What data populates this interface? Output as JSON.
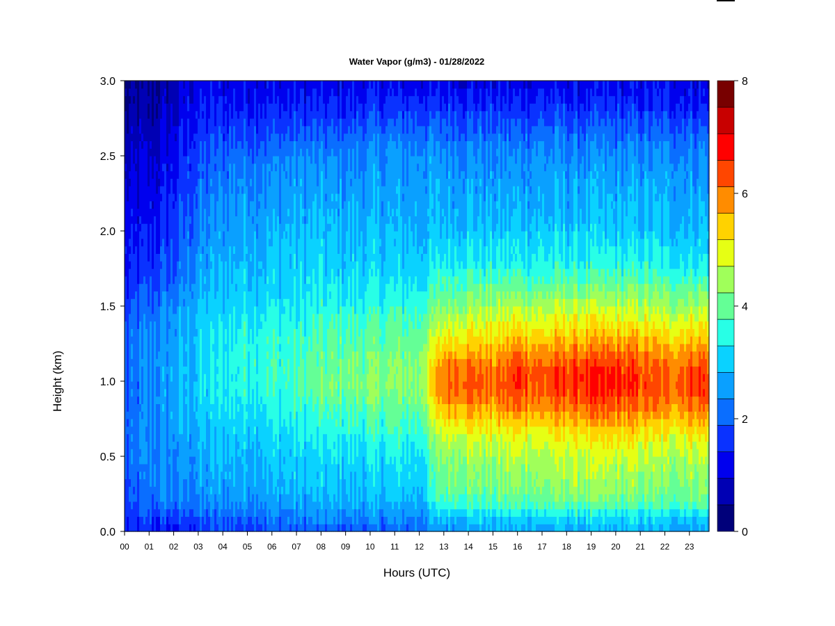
{
  "chart_data": {
    "type": "heatmap",
    "title": "Water Vapor (g/m3) - 01/28/2022",
    "xlabel": "Hours (UTC)",
    "ylabel": "Height (km)",
    "x_ticks": [
      "00",
      "01",
      "02",
      "03",
      "04",
      "05",
      "06",
      "07",
      "08",
      "09",
      "10",
      "11",
      "12",
      "13",
      "14",
      "15",
      "16",
      "17",
      "18",
      "19",
      "20",
      "21",
      "22",
      "23"
    ],
    "y_ticks": [
      "0.0",
      "0.5",
      "1.0",
      "1.5",
      "2.0",
      "2.5",
      "3.0"
    ],
    "xlim": [
      0,
      23.8
    ],
    "ylim": [
      0,
      3
    ],
    "colorbar": {
      "min": 0,
      "max": 8,
      "step": 0.5,
      "tick_labels": [
        "0",
        "2",
        "4",
        "6",
        "8"
      ],
      "colors": [
        "#00007a",
        "#0000b4",
        "#0000ee",
        "#0a32ff",
        "#0a6eff",
        "#0aa0ff",
        "#0ad2ff",
        "#28ffe6",
        "#64ff96",
        "#a0ff5a",
        "#e6ff14",
        "#ffd200",
        "#ff8c00",
        "#ff4600",
        "#ff0000",
        "#c80000",
        "#780000"
      ]
    },
    "profile_heights_km": [
      0.0,
      0.1,
      0.2,
      0.3,
      0.4,
      0.5,
      0.6,
      0.7,
      0.8,
      0.9,
      1.0,
      1.1,
      1.2,
      1.3,
      1.4,
      1.5,
      1.6,
      1.7,
      1.8,
      1.9,
      2.0,
      2.1,
      2.2,
      2.3,
      2.4,
      2.5,
      2.6,
      2.7,
      2.8,
      2.9,
      3.0
    ],
    "profile_hours": [
      0,
      1,
      2,
      3,
      4,
      5,
      6,
      7,
      8,
      9,
      10,
      11,
      12,
      13,
      14,
      15,
      16,
      17,
      18,
      19,
      20,
      21,
      22,
      23
    ],
    "values": [
      [
        1.4,
        1.5,
        1.8,
        1.8,
        1.9,
        2.0,
        2.0,
        2.0,
        2.0,
        2.0,
        2.0,
        2.0,
        2.0,
        2.0,
        1.9,
        1.7,
        1.5,
        1.4,
        1.3,
        1.3,
        1.2,
        1.2,
        1.1,
        1.0,
        0.9,
        0.8,
        0.7,
        0.6,
        0.5,
        0.4,
        0.3
      ],
      [
        1.5,
        1.8,
        2.2,
        2.3,
        2.4,
        2.5,
        2.5,
        2.5,
        2.5,
        2.5,
        2.5,
        2.5,
        2.5,
        2.5,
        2.4,
        2.2,
        2.0,
        1.8,
        1.6,
        1.5,
        1.4,
        1.3,
        1.2,
        1.1,
        1.0,
        0.9,
        0.8,
        0.7,
        0.6,
        0.5,
        0.4
      ],
      [
        1.4,
        1.8,
        2.4,
        2.4,
        2.5,
        2.5,
        2.6,
        2.7,
        2.8,
        2.8,
        2.8,
        2.8,
        2.8,
        2.7,
        2.6,
        2.5,
        2.3,
        2.1,
        2.0,
        1.9,
        1.8,
        1.7,
        1.6,
        1.5,
        1.4,
        1.3,
        1.2,
        1.1,
        1.0,
        0.9,
        0.8
      ],
      [
        1.6,
        2.0,
        2.4,
        2.6,
        2.7,
        2.8,
        2.9,
        3.0,
        3.1,
        3.2,
        3.2,
        3.2,
        3.2,
        3.2,
        3.1,
        3.0,
        2.8,
        2.7,
        2.6,
        2.5,
        2.4,
        2.3,
        2.2,
        2.1,
        2.0,
        1.9,
        1.8,
        1.6,
        1.5,
        1.3,
        1.2
      ],
      [
        1.8,
        2.2,
        2.6,
        2.8,
        2.9,
        3.0,
        3.1,
        3.2,
        3.4,
        3.5,
        3.5,
        3.5,
        3.5,
        3.5,
        3.4,
        3.3,
        3.1,
        3.0,
        2.9,
        2.8,
        2.7,
        2.6,
        2.5,
        2.4,
        2.3,
        2.1,
        1.9,
        1.7,
        1.5,
        1.3,
        1.2
      ],
      [
        1.9,
        2.3,
        2.7,
        2.9,
        3.0,
        3.1,
        3.2,
        3.4,
        3.5,
        3.7,
        3.8,
        3.8,
        3.8,
        3.7,
        3.6,
        3.4,
        3.3,
        3.2,
        3.1,
        3.0,
        2.9,
        2.8,
        2.7,
        2.6,
        2.5,
        2.3,
        2.1,
        1.9,
        1.6,
        1.4,
        1.2
      ],
      [
        1.9,
        2.4,
        2.8,
        2.9,
        3.0,
        3.1,
        3.3,
        3.4,
        3.6,
        3.8,
        3.9,
        3.9,
        3.9,
        3.8,
        3.6,
        3.5,
        3.3,
        3.2,
        3.1,
        3.0,
        2.9,
        2.8,
        2.7,
        2.6,
        2.5,
        2.3,
        2.1,
        1.8,
        1.6,
        1.4,
        1.2
      ],
      [
        2.0,
        2.4,
        2.8,
        3.0,
        3.1,
        3.2,
        3.4,
        3.5,
        3.7,
        3.9,
        4.0,
        4.0,
        3.9,
        3.8,
        3.6,
        3.5,
        3.4,
        3.3,
        3.2,
        3.1,
        3.0,
        2.9,
        2.8,
        2.7,
        2.6,
        2.5,
        2.2,
        1.9,
        1.6,
        1.4,
        1.2
      ],
      [
        2.1,
        2.5,
        2.9,
        3.1,
        3.2,
        3.3,
        3.5,
        3.7,
        3.9,
        4.2,
        4.3,
        4.2,
        4.1,
        4.0,
        3.8,
        3.6,
        3.4,
        3.3,
        3.2,
        3.1,
        3.0,
        2.9,
        2.8,
        2.7,
        2.6,
        2.4,
        2.2,
        1.9,
        1.6,
        1.4,
        1.2
      ],
      [
        2.1,
        2.5,
        2.9,
        3.1,
        3.2,
        3.4,
        3.6,
        3.8,
        4.0,
        4.3,
        4.4,
        4.3,
        4.2,
        4.1,
        3.9,
        3.7,
        3.5,
        3.3,
        3.2,
        3.1,
        3.0,
        2.9,
        2.8,
        2.7,
        2.6,
        2.4,
        2.2,
        1.9,
        1.6,
        1.4,
        1.2
      ],
      [
        2.1,
        2.5,
        3.0,
        3.1,
        3.2,
        3.4,
        3.6,
        3.8,
        4.1,
        4.4,
        4.5,
        4.4,
        4.3,
        4.1,
        3.9,
        3.7,
        3.5,
        3.4,
        3.2,
        3.1,
        3.0,
        2.9,
        2.8,
        2.7,
        2.6,
        2.5,
        2.3,
        2.0,
        1.7,
        1.4,
        1.2
      ],
      [
        2.1,
        2.5,
        3.0,
        3.2,
        3.3,
        3.5,
        3.7,
        3.9,
        4.1,
        4.4,
        4.5,
        4.5,
        4.3,
        4.2,
        4.0,
        3.8,
        3.5,
        3.4,
        3.2,
        3.1,
        3.0,
        2.9,
        2.8,
        2.8,
        2.7,
        2.6,
        2.4,
        2.1,
        1.8,
        1.5,
        1.2
      ],
      [
        2.2,
        2.6,
        3.0,
        3.2,
        3.4,
        3.5,
        3.7,
        3.9,
        4.2,
        4.5,
        4.6,
        4.5,
        4.4,
        4.2,
        4.0,
        3.8,
        3.6,
        3.4,
        3.2,
        3.1,
        3.0,
        2.9,
        2.8,
        2.8,
        2.7,
        2.6,
        2.4,
        2.1,
        1.8,
        1.5,
        1.2
      ],
      [
        2.6,
        3.2,
        4.0,
        4.3,
        4.4,
        4.6,
        4.9,
        5.4,
        5.9,
        6.4,
        6.6,
        6.4,
        5.9,
        5.4,
        5.0,
        4.6,
        4.2,
        3.9,
        3.5,
        3.3,
        3.1,
        3.0,
        2.9,
        2.8,
        2.7,
        2.6,
        2.4,
        2.1,
        1.8,
        1.5,
        1.2
      ],
      [
        2.7,
        3.3,
        4.1,
        4.4,
        4.6,
        4.8,
        5.1,
        5.6,
        6.1,
        6.6,
        6.8,
        6.6,
        6.1,
        5.6,
        5.2,
        4.7,
        4.3,
        4.0,
        3.6,
        3.4,
        3.2,
        3.0,
        2.9,
        2.8,
        2.7,
        2.6,
        2.4,
        2.1,
        1.8,
        1.5,
        1.2
      ],
      [
        2.7,
        3.3,
        4.0,
        4.3,
        4.5,
        4.7,
        5.0,
        5.4,
        5.9,
        6.3,
        6.4,
        6.3,
        5.9,
        5.5,
        5.1,
        4.7,
        4.3,
        3.9,
        3.5,
        3.3,
        3.1,
        3.0,
        2.8,
        2.7,
        2.6,
        2.5,
        2.3,
        2.0,
        1.7,
        1.4,
        1.2
      ],
      [
        2.8,
        3.4,
        4.2,
        4.5,
        4.7,
        4.9,
        5.2,
        5.7,
        6.3,
        6.8,
        7.1,
        6.9,
        6.4,
        5.8,
        5.4,
        4.9,
        4.4,
        4.0,
        3.6,
        3.4,
        3.2,
        3.0,
        2.9,
        2.8,
        2.7,
        2.5,
        2.3,
        2.0,
        1.7,
        1.4,
        1.2
      ],
      [
        2.8,
        3.4,
        4.2,
        4.5,
        4.7,
        4.9,
        5.1,
        5.5,
        6.0,
        6.5,
        6.6,
        6.5,
        6.1,
        5.6,
        5.2,
        4.8,
        4.3,
        3.9,
        3.6,
        3.4,
        3.2,
        3.0,
        2.9,
        2.8,
        2.7,
        2.6,
        2.4,
        2.1,
        1.8,
        1.5,
        1.2
      ],
      [
        2.8,
        3.4,
        4.3,
        4.6,
        4.8,
        5.0,
        5.3,
        5.8,
        6.3,
        6.8,
        7.0,
        6.8,
        6.3,
        5.8,
        5.4,
        4.9,
        4.4,
        4.0,
        3.6,
        3.4,
        3.2,
        3.0,
        2.9,
        2.8,
        2.7,
        2.5,
        2.3,
        2.0,
        1.7,
        1.4,
        1.2
      ],
      [
        2.8,
        3.4,
        4.3,
        4.6,
        4.8,
        5.0,
        5.3,
        5.8,
        6.4,
        6.9,
        7.1,
        6.9,
        6.4,
        5.8,
        5.4,
        4.9,
        4.4,
        4.0,
        3.6,
        3.4,
        3.2,
        3.0,
        2.9,
        2.8,
        2.7,
        2.5,
        2.3,
        2.0,
        1.7,
        1.4,
        1.2
      ],
      [
        2.8,
        3.4,
        4.3,
        4.6,
        4.8,
        5.1,
        5.4,
        5.9,
        6.4,
        6.9,
        7.1,
        6.9,
        6.4,
        5.9,
        5.4,
        4.9,
        4.4,
        4.0,
        3.6,
        3.4,
        3.2,
        3.0,
        2.9,
        2.8,
        2.7,
        2.5,
        2.3,
        2.0,
        1.7,
        1.4,
        1.2
      ],
      [
        2.8,
        3.4,
        4.2,
        4.5,
        4.7,
        5.0,
        5.3,
        5.8,
        6.3,
        6.7,
        6.9,
        6.7,
        6.3,
        5.8,
        5.3,
        4.9,
        4.4,
        4.0,
        3.6,
        3.4,
        3.2,
        3.0,
        2.9,
        2.8,
        2.7,
        2.5,
        2.3,
        2.0,
        1.7,
        1.4,
        1.2
      ],
      [
        2.7,
        3.3,
        4.1,
        4.4,
        4.6,
        4.8,
        5.1,
        5.5,
        6.0,
        6.4,
        6.5,
        6.4,
        6.0,
        5.5,
        5.1,
        4.7,
        4.3,
        3.9,
        3.5,
        3.3,
        3.1,
        3.0,
        2.9,
        2.8,
        2.7,
        2.5,
        2.3,
        2.0,
        1.7,
        1.4,
        1.2
      ],
      [
        2.8,
        3.4,
        4.3,
        4.5,
        4.7,
        5.0,
        5.3,
        5.8,
        6.3,
        6.8,
        6.9,
        6.7,
        6.3,
        5.8,
        5.3,
        4.8,
        4.3,
        3.9,
        3.5,
        3.3,
        3.1,
        3.0,
        2.9,
        2.8,
        2.7,
        2.5,
        2.3,
        2.0,
        1.7,
        1.4,
        1.2
      ]
    ]
  }
}
